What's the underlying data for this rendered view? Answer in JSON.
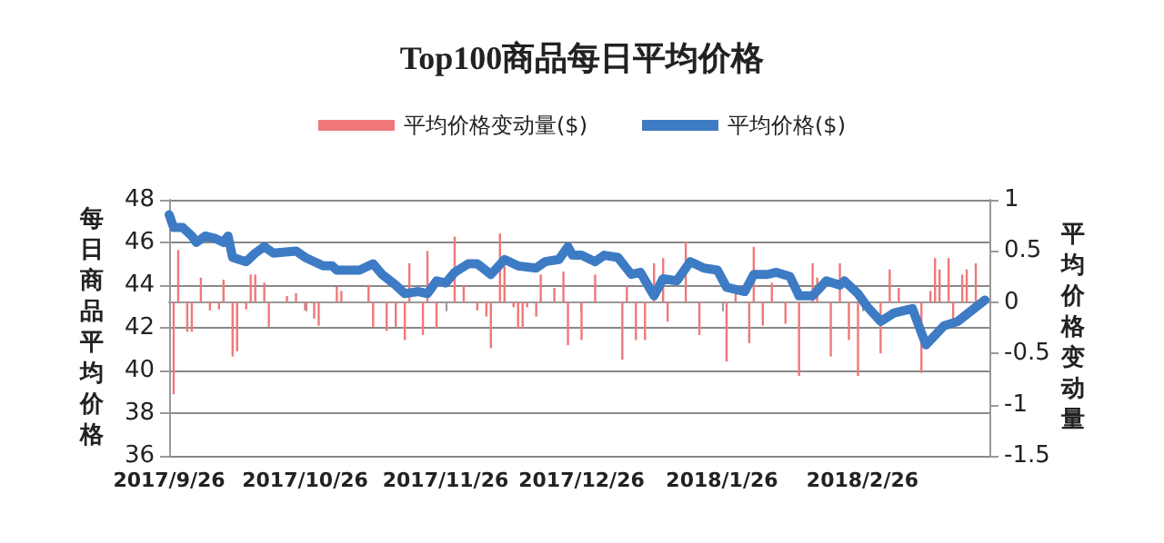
{
  "chart_data": {
    "type": "line",
    "title": "Top100商品每日平均价格",
    "ylabel": "每日商品平均价格",
    "y2label": "平均价格变动量",
    "xlim": [
      "2017-09-26",
      "2018-03-26"
    ],
    "xticks": [
      {
        "value": "2017-09-26",
        "label": "2017/9/26"
      },
      {
        "value": "2017-10-26",
        "label": "2017/10/26"
      },
      {
        "value": "2017-11-26",
        "label": "2017/11/26"
      },
      {
        "value": "2017-12-26",
        "label": "2017/12/26"
      },
      {
        "value": "2018-01-26",
        "label": "2018/1/26"
      },
      {
        "value": "2018-02-26",
        "label": "2018/2/26"
      },
      {
        "value": "2018-03-26",
        "label": null
      }
    ],
    "ylim": [
      36,
      48
    ],
    "yticks": [
      36,
      38,
      40,
      42,
      44,
      46,
      48
    ],
    "y2lim": [
      -1.5,
      1
    ],
    "y2ticks": [
      -1.5,
      -1,
      -0.5,
      0,
      0.5,
      1
    ],
    "grid": "y",
    "legend": "top",
    "marker": "none",
    "line_style": "solid",
    "series": [
      {
        "name": "平均价格变动量($)",
        "type": "bar",
        "axis": "y2",
        "color": "#f07878",
        "x": [
          "2017-09-27",
          "2017-09-28",
          "2017-09-30",
          "2017-10-01",
          "2017-10-03",
          "2017-10-05",
          "2017-10-07",
          "2017-10-08",
          "2017-10-10",
          "2017-10-11",
          "2017-10-13",
          "2017-10-14",
          "2017-10-15",
          "2017-10-17",
          "2017-10-18",
          "2017-10-22",
          "2017-10-24",
          "2017-10-26",
          "2017-10-28",
          "2017-10-29",
          "2017-11-02",
          "2017-11-03",
          "2017-11-09",
          "2017-11-10",
          "2017-11-13",
          "2017-11-15",
          "2017-11-17",
          "2017-11-18",
          "2017-11-21",
          "2017-11-22",
          "2017-11-24",
          "2017-11-28",
          "2017-11-30",
          "2017-12-03",
          "2017-12-05",
          "2017-12-06",
          "2017-12-08",
          "2017-12-09",
          "2017-12-11",
          "2017-12-12",
          "2017-12-13",
          "2017-12-14",
          "2017-12-16",
          "2017-12-17",
          "2017-12-20",
          "2017-12-22",
          "2017-12-23",
          "2017-12-26",
          "2017-12-29",
          "2018-01-04",
          "2018-01-05",
          "2018-01-07",
          "2018-01-09",
          "2018-01-11",
          "2018-01-13",
          "2018-01-14",
          "2018-01-18",
          "2018-01-21",
          "2018-01-27",
          "2018-01-29",
          "2018-02-01",
          "2018-02-02",
          "2018-02-04",
          "2018-02-06",
          "2018-02-09",
          "2018-02-12",
          "2018-02-15",
          "2018-02-16",
          "2018-02-19",
          "2018-02-21",
          "2018-02-23",
          "2018-02-25",
          "2018-03-02",
          "2018-03-04",
          "2018-03-06",
          "2018-03-11",
          "2018-03-13",
          "2018-03-14",
          "2018-03-15",
          "2018-03-17",
          "2018-03-18",
          "2018-03-20",
          "2018-03-21",
          "2018-03-23"
        ],
        "values": [
          -0.9,
          0.51,
          -0.29,
          -0.29,
          0.24,
          -0.08,
          -0.07,
          0.22,
          -0.53,
          -0.48,
          -0.07,
          0.27,
          0.27,
          0.19,
          -0.24,
          0.06,
          0.09,
          -0.08,
          -0.16,
          -0.23,
          0.15,
          0.11,
          0.17,
          -0.24,
          -0.28,
          -0.24,
          -0.37,
          0.38,
          -0.32,
          0.5,
          -0.26,
          0.64,
          0.16,
          -0.08,
          -0.14,
          -0.45,
          0.67,
          0.35,
          -0.05,
          -0.26,
          -0.26,
          -0.05,
          -0.14,
          0.27,
          0.14,
          0.3,
          -0.42,
          -0.37,
          0.27,
          -0.56,
          0.16,
          -0.37,
          -0.37,
          0.38,
          0.43,
          -0.19,
          0.59,
          -0.32,
          -0.58,
          0.08,
          -0.4,
          0.54,
          -0.23,
          0.19,
          -0.21,
          -0.72,
          0.38,
          0.24,
          -0.53,
          0.38,
          -0.37,
          -0.72,
          -0.5,
          0.32,
          0.14,
          -0.69,
          0.11,
          0.43,
          0.32,
          0.43,
          -0.19,
          0.27,
          0.32,
          0.38
        ]
      },
      {
        "name": "平均价格($)",
        "color": "#3d7bc4",
        "x": [
          "2017-09-26",
          "2017-09-27",
          "2017-09-29",
          "2017-10-01",
          "2017-10-02",
          "2017-10-04",
          "2017-10-06",
          "2017-10-08",
          "2017-10-09",
          "2017-10-10",
          "2017-10-13",
          "2017-10-15",
          "2017-10-17",
          "2017-10-19",
          "2017-10-24",
          "2017-10-26",
          "2017-10-30",
          "2017-11-01",
          "2017-11-02",
          "2017-11-07",
          "2017-11-10",
          "2017-11-12",
          "2017-11-15",
          "2017-11-17",
          "2017-11-20",
          "2017-11-22",
          "2017-11-24",
          "2017-11-26",
          "2017-11-28",
          "2017-12-01",
          "2017-12-03",
          "2017-12-06",
          "2017-12-09",
          "2017-12-12",
          "2017-12-16",
          "2017-12-18",
          "2017-12-21",
          "2017-12-23",
          "2017-12-24",
          "2017-12-26",
          "2017-12-29",
          "2017-12-31",
          "2018-01-03",
          "2018-01-06",
          "2018-01-08",
          "2018-01-11",
          "2018-01-13",
          "2018-01-16",
          "2018-01-19",
          "2018-01-22",
          "2018-01-25",
          "2018-01-27",
          "2018-01-31",
          "2018-02-02",
          "2018-02-05",
          "2018-02-07",
          "2018-02-10",
          "2018-02-12",
          "2018-02-15",
          "2018-02-18",
          "2018-02-21",
          "2018-02-22",
          "2018-02-25",
          "2018-02-27",
          "2018-03-02",
          "2018-03-05",
          "2018-03-09",
          "2018-03-12",
          "2018-03-16",
          "2018-03-19",
          "2018-03-22",
          "2018-03-25"
        ],
        "values": [
          47.3,
          46.7,
          46.7,
          46.3,
          46.0,
          46.3,
          46.2,
          46.0,
          46.3,
          45.3,
          45.1,
          45.5,
          45.8,
          45.5,
          45.6,
          45.3,
          44.9,
          44.9,
          44.7,
          44.7,
          45.0,
          44.5,
          44.0,
          43.6,
          43.7,
          43.6,
          44.2,
          44.1,
          44.6,
          45.0,
          45.0,
          44.5,
          45.2,
          44.9,
          44.8,
          45.1,
          45.2,
          45.8,
          45.4,
          45.4,
          45.1,
          45.4,
          45.3,
          44.5,
          44.6,
          43.5,
          44.3,
          44.2,
          45.1,
          44.8,
          44.7,
          43.9,
          43.7,
          44.5,
          44.5,
          44.6,
          44.4,
          43.5,
          43.5,
          44.2,
          44.0,
          44.2,
          43.6,
          43.0,
          42.3,
          42.7,
          42.9,
          41.2,
          42.1,
          42.3,
          42.8,
          43.3
        ]
      }
    ]
  }
}
